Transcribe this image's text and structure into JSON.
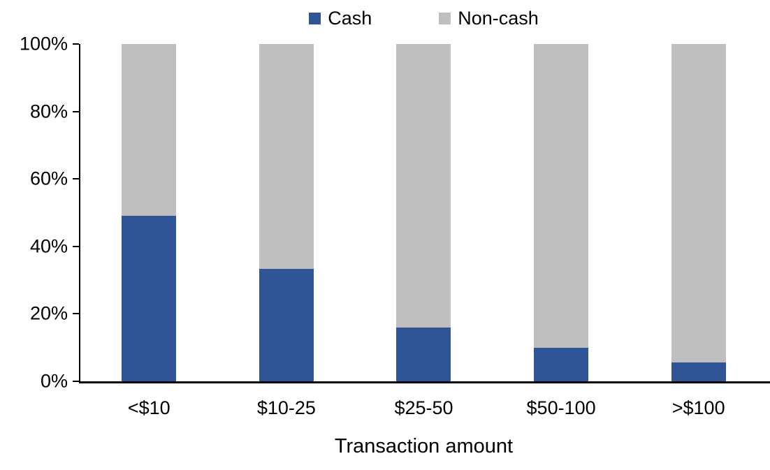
{
  "chart_data": {
    "type": "bar",
    "stacked": true,
    "categories": [
      "<$10",
      "$10-25",
      "$25-50",
      "$50-100",
      ">$100"
    ],
    "series": [
      {
        "name": "Cash",
        "color": "#2F5597",
        "values": [
          49.0,
          33.4,
          15.9,
          9.9,
          5.6
        ]
      },
      {
        "name": "Non-cash",
        "color": "#BFBFBF",
        "values": [
          51.0,
          66.6,
          84.1,
          90.1,
          94.4
        ]
      }
    ],
    "title": "",
    "xlabel": "Transaction amount",
    "ylabel": "",
    "ylim": [
      0,
      100
    ],
    "ytick_labels": [
      "0%",
      "20%",
      "40%",
      "60%",
      "80%",
      "100%"
    ],
    "legend_position": "top-center",
    "grid": false,
    "axis_color": "#000000",
    "text_color": "#000000",
    "background": "#FFFFFF"
  }
}
